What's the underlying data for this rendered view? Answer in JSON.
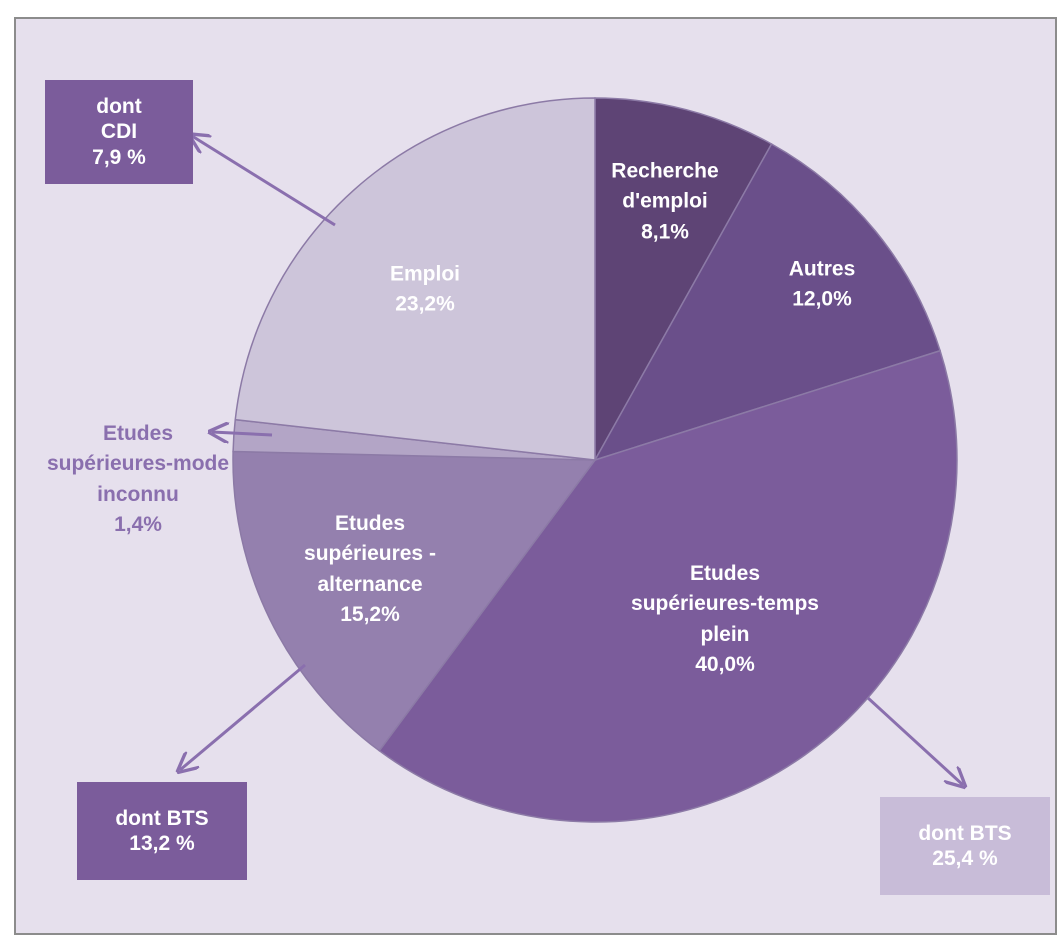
{
  "chart_data": {
    "type": "pie",
    "categories": [
      "Recherche d'emploi",
      "Autres",
      "Etudes supérieures-temps plein",
      "Etudes supérieures - alternance",
      "Etudes supérieures-mode inconnu",
      "Emploi"
    ],
    "values": [
      8.1,
      12.0,
      40.0,
      15.2,
      1.4,
      23.2
    ],
    "value_labels": [
      "8,1%",
      "12,0%",
      "40,0%",
      "15,2%",
      "1,4%",
      "23,2%"
    ],
    "colors": [
      "#5e4475",
      "#6a4f8a",
      "#7b5c9b",
      "#9480ae",
      "#b3a5c6",
      "#cdc5da"
    ],
    "annotations": [
      {
        "text": "dont CDI",
        "value_label": "7,9 %"
      },
      {
        "text": "dont BTS",
        "value_label": "13,2 %"
      },
      {
        "text": "dont BTS",
        "value_label": "25,4 %"
      }
    ]
  }
}
